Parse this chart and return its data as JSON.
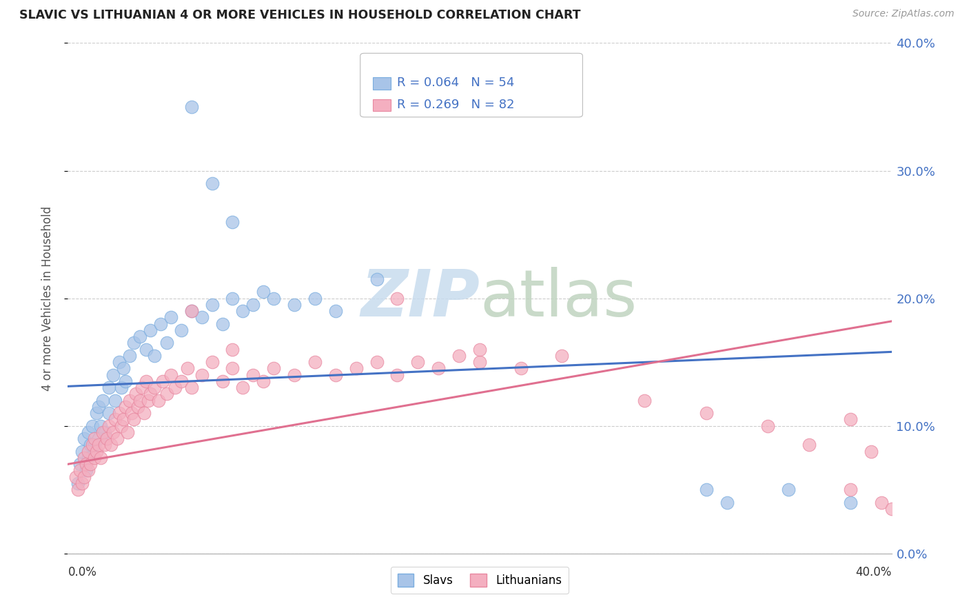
{
  "title": "SLAVIC VS LITHUANIAN 4 OR MORE VEHICLES IN HOUSEHOLD CORRELATION CHART",
  "source": "Source: ZipAtlas.com",
  "ylabel": "4 or more Vehicles in Household",
  "ytick_vals": [
    0.0,
    0.1,
    0.2,
    0.3,
    0.4
  ],
  "ytick_labels": [
    "0.0%",
    "10.0%",
    "20.0%",
    "30.0%",
    "40.0%"
  ],
  "xrange": [
    0.0,
    0.4
  ],
  "yrange": [
    0.0,
    0.4
  ],
  "slavs_R": 0.064,
  "slavs_N": 54,
  "lithuanians_R": 0.269,
  "lithuanians_N": 82,
  "slavs_color": "#a8c4e8",
  "slavs_edge_color": "#7aaddf",
  "lithuanians_color": "#f4afc0",
  "lithuanians_edge_color": "#e888a0",
  "slavs_line_color": "#4472c4",
  "lithuanians_line_color": "#e07090",
  "watermark_zip": "ZIP",
  "watermark_atlas": "atlas",
  "watermark_color": "#d0e4f0",
  "watermark_atlas_color": "#c8d8c8",
  "slavs_line_start_y": 0.131,
  "slavs_line_end_y": 0.158,
  "lith_line_start_y": 0.07,
  "lith_line_end_y": 0.182,
  "slavs_x": [
    0.005,
    0.006,
    0.007,
    0.008,
    0.009,
    0.01,
    0.01,
    0.011,
    0.012,
    0.013,
    0.014,
    0.015,
    0.015,
    0.016,
    0.017,
    0.018,
    0.02,
    0.02,
    0.022,
    0.023,
    0.025,
    0.026,
    0.027,
    0.028,
    0.03,
    0.032,
    0.035,
    0.038,
    0.04,
    0.042,
    0.045,
    0.048,
    0.05,
    0.055,
    0.06,
    0.065,
    0.07,
    0.075,
    0.08,
    0.085,
    0.09,
    0.095,
    0.1,
    0.11,
    0.12,
    0.13,
    0.06,
    0.07,
    0.08,
    0.15,
    0.31,
    0.32,
    0.35,
    0.38
  ],
  "slavs_y": [
    0.055,
    0.07,
    0.08,
    0.09,
    0.065,
    0.075,
    0.095,
    0.085,
    0.1,
    0.085,
    0.11,
    0.09,
    0.115,
    0.1,
    0.12,
    0.095,
    0.13,
    0.11,
    0.14,
    0.12,
    0.15,
    0.13,
    0.145,
    0.135,
    0.155,
    0.165,
    0.17,
    0.16,
    0.175,
    0.155,
    0.18,
    0.165,
    0.185,
    0.175,
    0.19,
    0.185,
    0.195,
    0.18,
    0.2,
    0.19,
    0.195,
    0.205,
    0.2,
    0.195,
    0.2,
    0.19,
    0.35,
    0.29,
    0.26,
    0.215,
    0.05,
    0.04,
    0.05,
    0.04
  ],
  "lith_x": [
    0.004,
    0.005,
    0.006,
    0.007,
    0.008,
    0.008,
    0.009,
    0.01,
    0.01,
    0.011,
    0.012,
    0.013,
    0.013,
    0.014,
    0.015,
    0.016,
    0.017,
    0.018,
    0.019,
    0.02,
    0.021,
    0.022,
    0.023,
    0.024,
    0.025,
    0.026,
    0.027,
    0.028,
    0.029,
    0.03,
    0.031,
    0.032,
    0.033,
    0.034,
    0.035,
    0.036,
    0.037,
    0.038,
    0.039,
    0.04,
    0.042,
    0.044,
    0.046,
    0.048,
    0.05,
    0.052,
    0.055,
    0.058,
    0.06,
    0.065,
    0.07,
    0.075,
    0.08,
    0.085,
    0.09,
    0.095,
    0.1,
    0.11,
    0.12,
    0.13,
    0.14,
    0.15,
    0.16,
    0.17,
    0.18,
    0.19,
    0.2,
    0.22,
    0.24,
    0.06,
    0.08,
    0.16,
    0.2,
    0.28,
    0.31,
    0.34,
    0.36,
    0.38,
    0.38,
    0.39,
    0.395,
    0.4
  ],
  "lith_y": [
    0.06,
    0.05,
    0.065,
    0.055,
    0.075,
    0.06,
    0.07,
    0.065,
    0.08,
    0.07,
    0.085,
    0.075,
    0.09,
    0.08,
    0.085,
    0.075,
    0.095,
    0.085,
    0.09,
    0.1,
    0.085,
    0.095,
    0.105,
    0.09,
    0.11,
    0.1,
    0.105,
    0.115,
    0.095,
    0.12,
    0.11,
    0.105,
    0.125,
    0.115,
    0.12,
    0.13,
    0.11,
    0.135,
    0.12,
    0.125,
    0.13,
    0.12,
    0.135,
    0.125,
    0.14,
    0.13,
    0.135,
    0.145,
    0.13,
    0.14,
    0.15,
    0.135,
    0.145,
    0.13,
    0.14,
    0.135,
    0.145,
    0.14,
    0.15,
    0.14,
    0.145,
    0.15,
    0.14,
    0.15,
    0.145,
    0.155,
    0.15,
    0.145,
    0.155,
    0.19,
    0.16,
    0.2,
    0.16,
    0.12,
    0.11,
    0.1,
    0.085,
    0.05,
    0.105,
    0.08,
    0.04,
    0.035
  ]
}
